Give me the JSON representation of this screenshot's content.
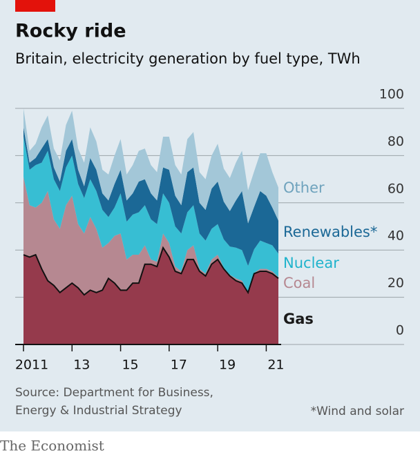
{
  "chart_data": {
    "type": "stacked_area",
    "title": "Rocky ride",
    "subtitle": "Britain, electricity generation by fuel type, TWh",
    "source": "Source: Department for Business, Energy & Industrial Strategy",
    "footnote": "*Wind and solar",
    "brand": "The Economist",
    "x": [
      2011,
      2011.25,
      2011.5,
      2011.75,
      2012,
      2012.25,
      2012.5,
      2012.75,
      2013,
      2013.25,
      2013.5,
      2013.75,
      2014,
      2014.25,
      2014.5,
      2014.75,
      2015,
      2015.25,
      2015.5,
      2015.75,
      2016,
      2016.25,
      2016.5,
      2016.75,
      2017,
      2017.25,
      2017.5,
      2017.75,
      2018,
      2018.25,
      2018.5,
      2018.75,
      2019,
      2019.25,
      2019.5,
      2019.75,
      2020,
      2020.25,
      2020.5,
      2020.75,
      2021,
      2021.25,
      2021.5
    ],
    "series": [
      {
        "name": "Gas",
        "color": "#953a4c",
        "label_color": "#1a1a1a",
        "values": [
          38,
          37,
          38,
          32,
          27,
          25,
          22,
          24,
          26,
          24,
          21,
          23,
          22,
          23,
          28,
          26,
          23,
          23,
          26,
          26,
          34,
          34,
          33,
          41,
          37,
          31,
          30,
          36,
          36,
          31,
          29,
          34,
          36,
          32,
          29,
          27,
          26,
          22,
          30,
          31,
          31,
          30,
          28
        ]
      },
      {
        "name": "Coal",
        "color": "#b68891",
        "label_color": "#b68891",
        "values": [
          33,
          22,
          20,
          28,
          38,
          28,
          27,
          35,
          37,
          27,
          26,
          31,
          27,
          18,
          15,
          20,
          24,
          13,
          12,
          12,
          8,
          2,
          2,
          6,
          6,
          2,
          1,
          4,
          6,
          1,
          1,
          2,
          2,
          0.5,
          0.5,
          1,
          1,
          0.3,
          0.3,
          1,
          1,
          1,
          0.5
        ]
      },
      {
        "name": "Nuclear",
        "color": "#37bed3",
        "label_color": "#1fb3cc",
        "values": [
          17,
          15,
          18,
          17,
          17,
          17,
          16,
          16,
          17,
          17,
          15,
          16,
          16,
          16,
          11,
          12,
          17,
          16,
          17,
          18,
          17,
          17,
          16,
          17,
          17,
          17,
          16,
          16,
          17,
          15,
          14,
          13,
          13,
          12,
          12,
          13,
          13,
          11,
          10,
          12,
          11,
          11,
          10
        ]
      },
      {
        "name": "Renewables*",
        "color": "#1b6896",
        "label_color": "#1b6896",
        "values": [
          4,
          3,
          3,
          6,
          5,
          5,
          4,
          7,
          7,
          6,
          5,
          9,
          9,
          7,
          7,
          10,
          10,
          9,
          9,
          13,
          11,
          11,
          10,
          11,
          14,
          13,
          12,
          17,
          16,
          13,
          13,
          17,
          18,
          16,
          15,
          20,
          25,
          18,
          18,
          21,
          20,
          16,
          14
        ]
      },
      {
        "name": "Other",
        "color": "#a3c7d8",
        "label_color": "#6fa3bd",
        "values": [
          8,
          5,
          6,
          9,
          10,
          8,
          9,
          11,
          12,
          9,
          10,
          13,
          12,
          10,
          11,
          12,
          13,
          11,
          12,
          13,
          13,
          12,
          12,
          13,
          14,
          13,
          13,
          14,
          15,
          13,
          13,
          14,
          16,
          14,
          14,
          16,
          17,
          14,
          15,
          16,
          18,
          15,
          14
        ]
      }
    ],
    "xlim": [
      2011,
      2021.5
    ],
    "xticks": [
      {
        "value": 2011,
        "label": "2011"
      },
      {
        "value": 2013,
        "label": "13"
      },
      {
        "value": 2015,
        "label": "15"
      },
      {
        "value": 2017,
        "label": "17"
      },
      {
        "value": 2019,
        "label": "19"
      },
      {
        "value": 2021,
        "label": "21"
      }
    ],
    "ylim": [
      0,
      100
    ],
    "yticks": [
      0,
      20,
      40,
      60,
      80,
      100
    ],
    "grid": true
  }
}
